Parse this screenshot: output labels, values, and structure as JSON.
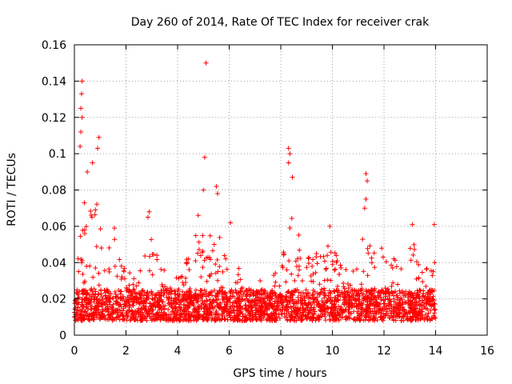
{
  "chart_data": {
    "type": "scatter",
    "title": "Day 260 of 2014, Rate Of TEC Index for receiver crak",
    "xlabel": "GPS time / hours",
    "ylabel": "ROTI / TECUs",
    "xlim": [
      0,
      16
    ],
    "ylim": [
      0,
      0.16
    ],
    "x_ticks": [
      0,
      2,
      4,
      6,
      8,
      10,
      12,
      14,
      16
    ],
    "y_ticks": [
      0,
      0.02,
      0.04,
      0.06,
      0.08,
      0.1,
      0.12,
      0.14,
      0.16
    ],
    "grid": true,
    "marker": "+",
    "color": "#ff0000",
    "x_extent": [
      0,
      14
    ],
    "baseline_band": [
      0.008,
      0.025
    ],
    "notable_points": [
      {
        "x": 5.1,
        "y": 0.15
      },
      {
        "x": 0.3,
        "y": 0.14
      },
      {
        "x": 0.28,
        "y": 0.133
      },
      {
        "x": 0.25,
        "y": 0.125
      },
      {
        "x": 0.3,
        "y": 0.12
      },
      {
        "x": 0.25,
        "y": 0.112
      },
      {
        "x": 0.22,
        "y": 0.104
      },
      {
        "x": 0.95,
        "y": 0.109
      },
      {
        "x": 0.9,
        "y": 0.103
      },
      {
        "x": 5.05,
        "y": 0.098
      },
      {
        "x": 8.3,
        "y": 0.103
      },
      {
        "x": 8.35,
        "y": 0.1
      },
      {
        "x": 8.3,
        "y": 0.095
      },
      {
        "x": 8.45,
        "y": 0.087
      },
      {
        "x": 11.3,
        "y": 0.089
      },
      {
        "x": 11.35,
        "y": 0.085
      },
      {
        "x": 11.3,
        "y": 0.075
      },
      {
        "x": 11.25,
        "y": 0.07
      },
      {
        "x": 0.7,
        "y": 0.095
      },
      {
        "x": 0.5,
        "y": 0.09
      },
      {
        "x": 5.5,
        "y": 0.082
      },
      {
        "x": 5.55,
        "y": 0.078
      },
      {
        "x": 5.0,
        "y": 0.08
      },
      {
        "x": 2.9,
        "y": 0.068
      },
      {
        "x": 2.85,
        "y": 0.065
      },
      {
        "x": 4.8,
        "y": 0.066
      },
      {
        "x": 13.1,
        "y": 0.061
      },
      {
        "x": 13.95,
        "y": 0.061
      },
      {
        "x": 6.05,
        "y": 0.062
      },
      {
        "x": 1.55,
        "y": 0.059
      },
      {
        "x": 9.9,
        "y": 0.06
      },
      {
        "x": 3.2,
        "y": 0.044
      },
      {
        "x": 7.2,
        "y": 0.03
      }
    ],
    "activity_envelope": [
      {
        "x": 0.0,
        "y": 0.03
      },
      {
        "x": 0.3,
        "y": 0.075
      },
      {
        "x": 0.6,
        "y": 0.07
      },
      {
        "x": 0.9,
        "y": 0.075
      },
      {
        "x": 1.2,
        "y": 0.045
      },
      {
        "x": 1.6,
        "y": 0.055
      },
      {
        "x": 2.0,
        "y": 0.035
      },
      {
        "x": 2.5,
        "y": 0.033
      },
      {
        "x": 2.9,
        "y": 0.06
      },
      {
        "x": 3.3,
        "y": 0.04
      },
      {
        "x": 3.8,
        "y": 0.03
      },
      {
        "x": 4.3,
        "y": 0.04
      },
      {
        "x": 4.8,
        "y": 0.06
      },
      {
        "x": 5.2,
        "y": 0.055
      },
      {
        "x": 5.5,
        "y": 0.07
      },
      {
        "x": 5.8,
        "y": 0.05
      },
      {
        "x": 6.1,
        "y": 0.055
      },
      {
        "x": 6.5,
        "y": 0.03
      },
      {
        "x": 7.0,
        "y": 0.028
      },
      {
        "x": 7.5,
        "y": 0.028
      },
      {
        "x": 7.9,
        "y": 0.04
      },
      {
        "x": 8.3,
        "y": 0.075
      },
      {
        "x": 8.6,
        "y": 0.06
      },
      {
        "x": 9.0,
        "y": 0.045
      },
      {
        "x": 9.5,
        "y": 0.045
      },
      {
        "x": 9.9,
        "y": 0.05
      },
      {
        "x": 10.4,
        "y": 0.04
      },
      {
        "x": 10.9,
        "y": 0.045
      },
      {
        "x": 11.3,
        "y": 0.06
      },
      {
        "x": 11.8,
        "y": 0.05
      },
      {
        "x": 12.3,
        "y": 0.045
      },
      {
        "x": 12.8,
        "y": 0.035
      },
      {
        "x": 13.1,
        "y": 0.055
      },
      {
        "x": 13.5,
        "y": 0.035
      },
      {
        "x": 13.9,
        "y": 0.05
      },
      {
        "x": 14.0,
        "y": 0.04
      }
    ]
  }
}
